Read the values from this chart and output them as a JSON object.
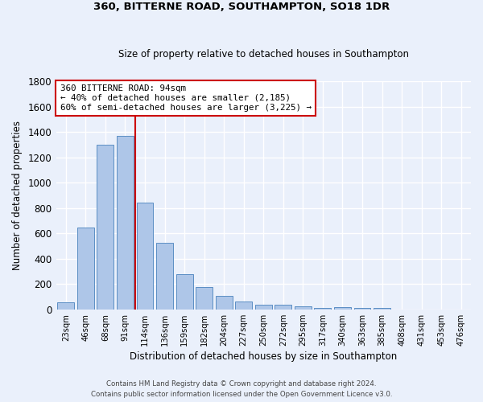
{
  "title": "360, BITTERNE ROAD, SOUTHAMPTON, SO18 1DR",
  "subtitle": "Size of property relative to detached houses in Southampton",
  "xlabel": "Distribution of detached houses by size in Southampton",
  "ylabel": "Number of detached properties",
  "footer_line1": "Contains HM Land Registry data © Crown copyright and database right 2024.",
  "footer_line2": "Contains public sector information licensed under the Open Government Licence v3.0.",
  "bar_labels": [
    "23sqm",
    "46sqm",
    "68sqm",
    "91sqm",
    "114sqm",
    "136sqm",
    "159sqm",
    "182sqm",
    "204sqm",
    "227sqm",
    "250sqm",
    "272sqm",
    "295sqm",
    "317sqm",
    "340sqm",
    "363sqm",
    "385sqm",
    "408sqm",
    "431sqm",
    "453sqm",
    "476sqm"
  ],
  "bar_values": [
    55,
    645,
    1300,
    1370,
    840,
    525,
    275,
    175,
    105,
    65,
    35,
    35,
    25,
    12,
    20,
    10,
    12,
    2,
    2,
    2,
    2
  ],
  "bar_color": "#aec6e8",
  "bar_edge_color": "#5b8ec4",
  "bg_color": "#eaf0fb",
  "grid_color": "#ffffff",
  "vline_x_index": 3,
  "vline_color": "#cc0000",
  "annotation_text": "360 BITTERNE ROAD: 94sqm\n← 40% of detached houses are smaller (2,185)\n60% of semi-detached houses are larger (3,225) →",
  "annotation_box_color": "#ffffff",
  "annotation_box_edge": "#cc0000",
  "ylim": [
    0,
    1800
  ],
  "yticks": [
    0,
    200,
    400,
    600,
    800,
    1000,
    1200,
    1400,
    1600,
    1800
  ]
}
